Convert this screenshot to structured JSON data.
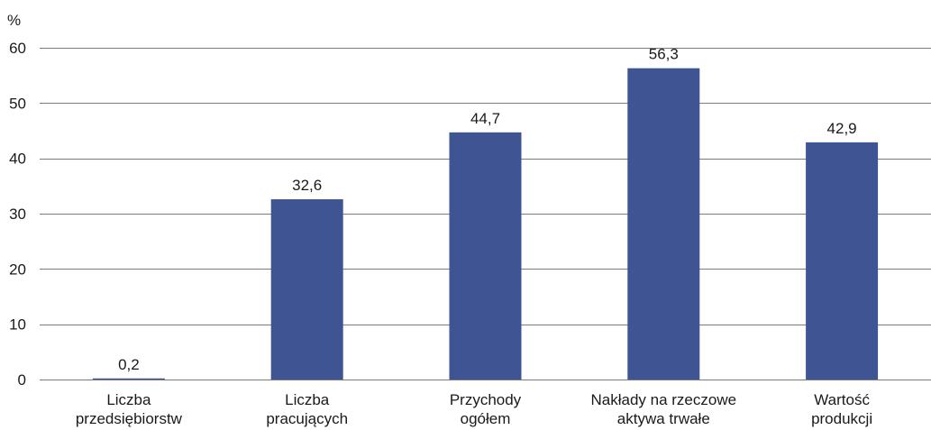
{
  "chart_data": {
    "type": "bar",
    "ylabel": "%",
    "ylim": [
      0,
      60
    ],
    "yticks": [
      0,
      10,
      20,
      30,
      40,
      50,
      60
    ],
    "categories": [
      [
        "Liczba",
        "przedsiębiorstw"
      ],
      [
        "Liczba",
        "pracujących"
      ],
      [
        "Przychody",
        "ogółem"
      ],
      [
        "Nakłady na rzeczowe",
        "aktywa trwałe"
      ],
      [
        "Wartość",
        "produkcji"
      ]
    ],
    "values": [
      0.2,
      32.6,
      44.7,
      56.3,
      42.9
    ],
    "data_labels": [
      "0,2",
      "32,6",
      "44,7",
      "56,3",
      "42,9"
    ],
    "grid": true,
    "legend": "none",
    "colors": {
      "bar": "#3F5492",
      "grid": "#7a7a7a",
      "text": "#1a1a1a"
    }
  }
}
